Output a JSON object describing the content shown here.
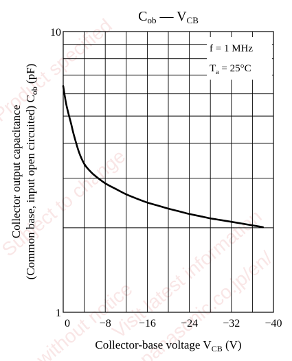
{
  "chart_data": {
    "type": "line",
    "title_main": "C",
    "title_main_sub": "ob",
    "title_dash": " — ",
    "title_vs": "V",
    "title_vs_sub": "CB",
    "xlabel_main": "Collector-base voltage  V",
    "xlabel_sub": "CB",
    "xlabel_unit": "  (V)",
    "ylabel_line1": "Collector output capacitance",
    "ylabel_line2_main": "(Common base, input open circuited)  C",
    "ylabel_line2_sub": "ob",
    "ylabel_line2_unit": "  (pF)",
    "xlim": [
      0,
      -40
    ],
    "ylim": [
      1,
      10
    ],
    "yscale": "log",
    "grid": true,
    "x_ticks": [
      0,
      -8,
      -16,
      -24,
      -32,
      -40
    ],
    "x_tick_labels": [
      "0",
      "−8",
      "−16",
      "−24",
      "−32",
      "−40"
    ],
    "y_tick_labels": [
      {
        "value": 10,
        "label": "10"
      },
      {
        "value": 1,
        "label": "1"
      }
    ],
    "annotations": {
      "freq": "f = 1 MHz",
      "temp_main": "T",
      "temp_sub": "a",
      "temp_rest": " = 25°C"
    },
    "series": [
      {
        "x": [
          0,
          -0.5,
          -1,
          -1.5,
          -2,
          -3,
          -4,
          -5,
          -6,
          -8,
          -10,
          -12,
          -14,
          -16,
          -18,
          -20,
          -22,
          -24,
          -26,
          -28,
          -30,
          -32,
          -34,
          -36,
          -38
        ],
        "y": [
          6.4,
          5.6,
          5.1,
          4.7,
          4.3,
          3.72,
          3.38,
          3.2,
          3.07,
          2.88,
          2.75,
          2.63,
          2.54,
          2.46,
          2.4,
          2.34,
          2.29,
          2.24,
          2.2,
          2.16,
          2.13,
          2.1,
          2.07,
          2.04,
          2.01
        ]
      }
    ],
    "colors": {
      "line": "#000000",
      "grid": "#000000",
      "watermark": "#f2c9c9"
    }
  },
  "watermark": {
    "lines": [
      "Product specified",
      "Subject to change",
      "without notice",
      "Visit latest information",
      "panasonic.co.jp/en/"
    ]
  }
}
